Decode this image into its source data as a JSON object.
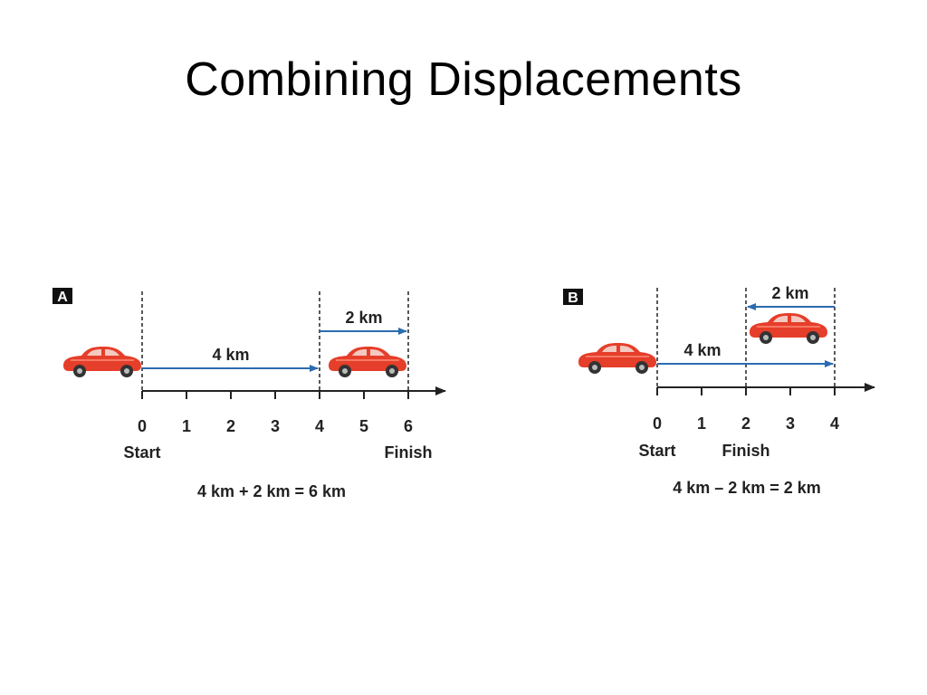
{
  "slide": {
    "title": "Combining Displacements"
  },
  "colors": {
    "arrow": "#2b6cb0",
    "axis": "#222222",
    "car": "#e53e2a",
    "panel_badge": "#111111"
  },
  "panel_a": {
    "letter": "A",
    "ticks": [
      "0",
      "1",
      "2",
      "3",
      "4",
      "5",
      "6"
    ],
    "start_label": "Start",
    "finish_label": "Finish",
    "arrow1": {
      "from": 0,
      "to": 4,
      "label": "4 km"
    },
    "arrow2": {
      "from": 4,
      "to": 6,
      "label": "2 km"
    },
    "equation": "4 km + 2 km = 6 km"
  },
  "panel_b": {
    "letter": "B",
    "ticks": [
      "0",
      "1",
      "2",
      "3",
      "4"
    ],
    "start_label": "Start",
    "finish_label": "Finish",
    "arrow1": {
      "from": 0,
      "to": 4,
      "label": "4 km"
    },
    "arrow2": {
      "from": 4,
      "to": 2,
      "label": "2 km"
    },
    "equation": "4 km – 2 km = 2 km"
  }
}
